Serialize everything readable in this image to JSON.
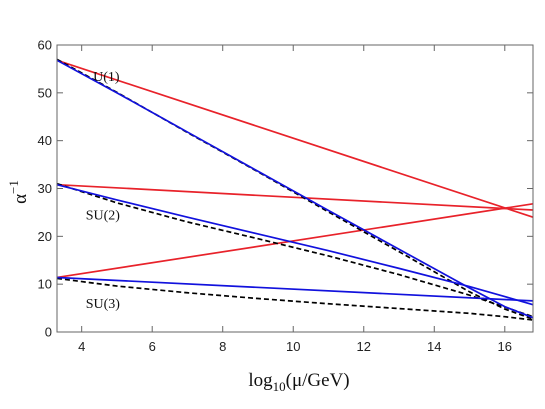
{
  "chart_data": {
    "type": "line",
    "xlabel": "log10(μ/GeV)",
    "xlabel_parts": {
      "base": "log",
      "sub": "10",
      "rest": "(μ/GeV)"
    },
    "ylabel": "α^-1",
    "ylabel_parts": {
      "base": "α",
      "sup": "−1"
    },
    "xlim": [
      3.3,
      16.8
    ],
    "ylim": [
      0,
      60
    ],
    "xticks": [
      4,
      6,
      8,
      10,
      12,
      14,
      16
    ],
    "yticks": [
      0,
      10,
      20,
      30,
      40,
      50,
      60
    ],
    "grid": false,
    "legend": "none",
    "annotations": [
      {
        "text": "U(1)",
        "x": 4.7,
        "y": 52.5
      },
      {
        "text": "SU(2)",
        "x": 4.6,
        "y": 23.5
      },
      {
        "text": "SU(3)",
        "x": 4.6,
        "y": 5.0
      }
    ],
    "series": [
      {
        "color": "#e8222a",
        "style": "solid",
        "x": [
          3.3,
          16.8
        ],
        "y": [
          56.8,
          24.0
        ]
      },
      {
        "color": "#e8222a",
        "style": "solid",
        "x": [
          3.3,
          16.8
        ],
        "y": [
          30.8,
          25.5
        ]
      },
      {
        "color": "#e8222a",
        "style": "solid",
        "x": [
          3.3,
          16.8
        ],
        "y": [
          11.4,
          26.8
        ]
      },
      {
        "color": "#000000",
        "style": "dashed",
        "x": [
          3.3,
          5,
          7,
          9,
          11,
          13,
          15,
          16,
          16.8
        ],
        "y": [
          57.0,
          50.1,
          41.7,
          33.5,
          25.1,
          16.8,
          8.4,
          4.8,
          2.7
        ]
      },
      {
        "color": "#000000",
        "style": "dashed",
        "x": [
          3.3,
          5,
          7,
          9,
          11,
          13,
          15,
          16,
          16.8
        ],
        "y": [
          31.0,
          27.0,
          23.0,
          19.5,
          15.9,
          12.0,
          7.7,
          5.2,
          3.2
        ]
      },
      {
        "color": "#000000",
        "style": "dashed",
        "x": [
          3.3,
          5,
          7,
          9,
          11,
          13,
          15,
          16,
          16.8
        ],
        "y": [
          11.2,
          9.6,
          8.2,
          7.0,
          5.9,
          4.9,
          3.9,
          3.2,
          2.5
        ]
      },
      {
        "color": "#1111dd",
        "style": "solid",
        "x": [
          3.3,
          5,
          7,
          9,
          11,
          13,
          15,
          16,
          16.8
        ],
        "y": [
          56.8,
          50.0,
          41.8,
          33.6,
          25.4,
          17.3,
          9.2,
          5.3,
          3.0
        ]
      },
      {
        "color": "#1111dd",
        "style": "solid",
        "x": [
          3.3,
          5,
          7,
          9,
          11,
          13,
          15,
          16,
          16.8
        ],
        "y": [
          30.8,
          27.6,
          24.0,
          20.5,
          17.0,
          13.3,
          9.5,
          7.4,
          5.7
        ]
      },
      {
        "color": "#1111dd",
        "style": "solid",
        "x": [
          3.3,
          16.8
        ],
        "y": [
          11.4,
          6.5
        ]
      }
    ]
  }
}
